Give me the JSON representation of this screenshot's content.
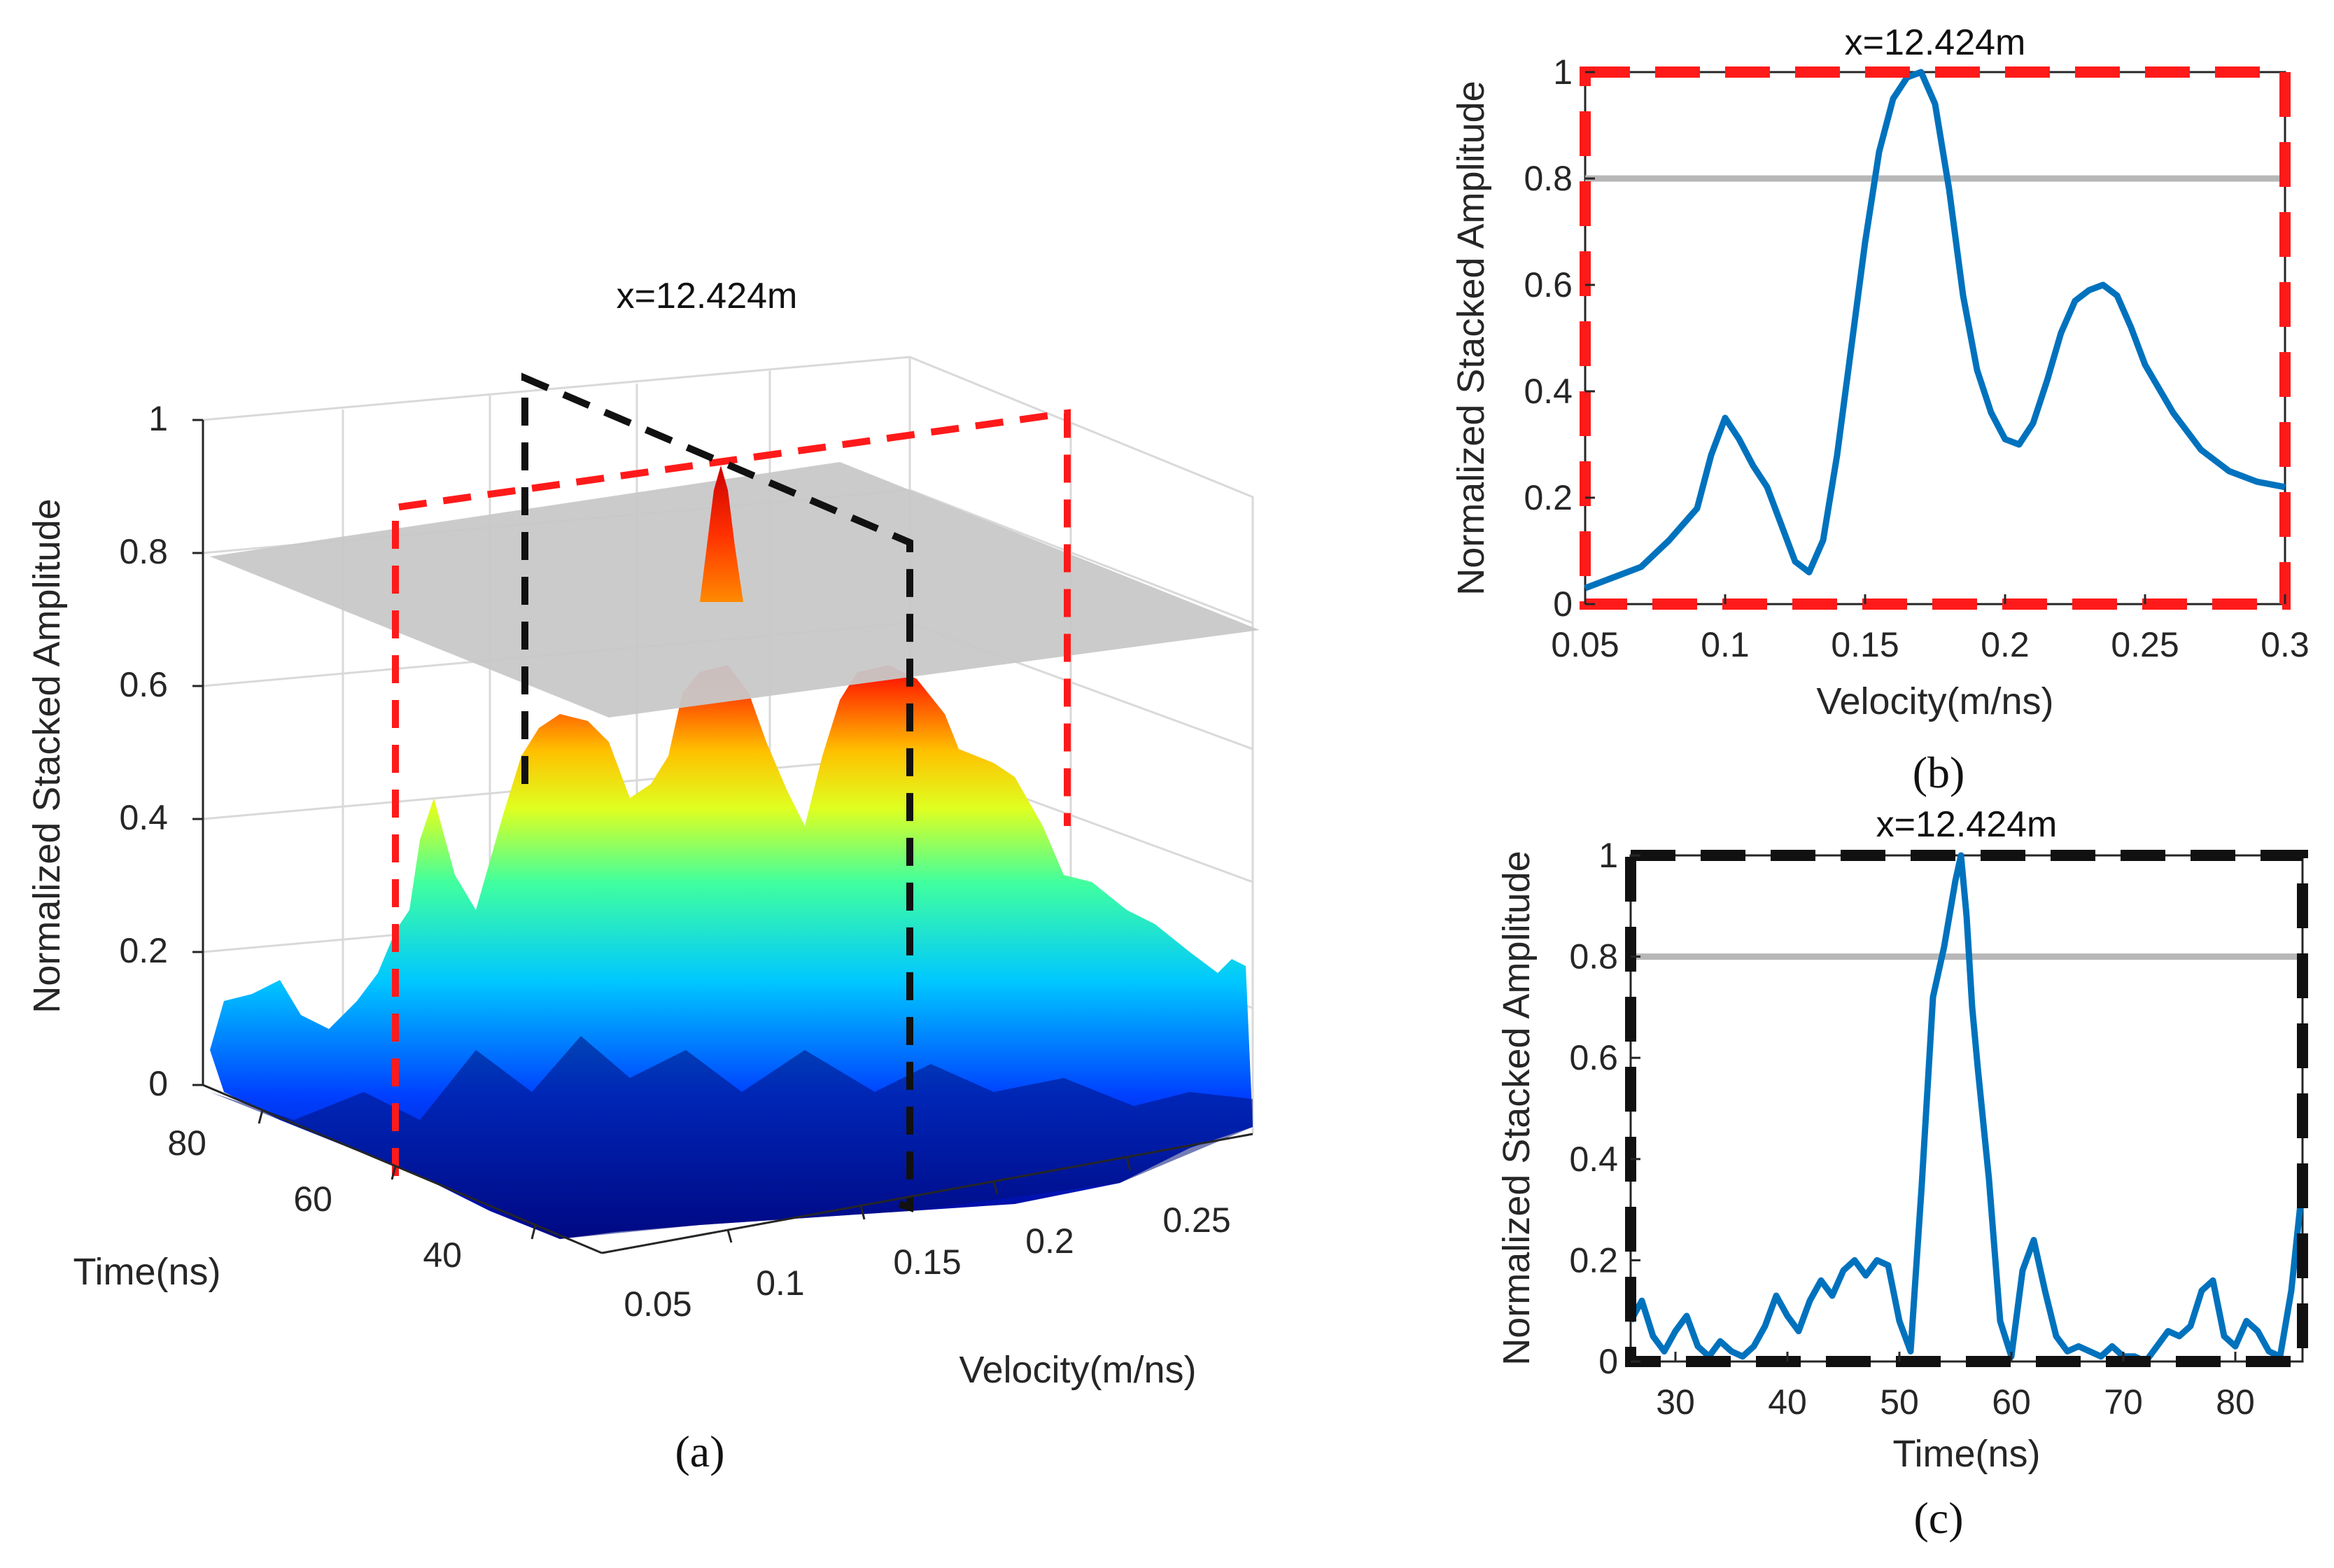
{
  "chart_data": [
    {
      "type": "surface3d",
      "panel_label": "(a)",
      "title": "x=12.424m",
      "zlabel": "Normalized Stacked Amplitude",
      "xlabel": "Velocity(m/ns)",
      "ylabel": "Time(ns)",
      "z_ticks": [
        "0",
        "0.2",
        "0.4",
        "0.6",
        "0.8",
        "1"
      ],
      "x_ticks": [
        "0.05",
        "0.1",
        "0.15",
        "0.2",
        "0.25"
      ],
      "y_ticks": [
        "80",
        "60",
        "40"
      ],
      "threshold": 0.8,
      "peak": {
        "velocity": 0.17,
        "time": 56,
        "amplitude": 1.0
      },
      "ridge_profile": [
        {
          "velocity": 0.05,
          "amplitude": 0.08
        },
        {
          "velocity": 0.08,
          "amplitude": 0.12
        },
        {
          "velocity": 0.1,
          "amplitude": 0.3
        },
        {
          "velocity": 0.13,
          "amplitude": 0.55
        },
        {
          "velocity": 0.15,
          "amplitude": 0.62
        },
        {
          "velocity": 0.17,
          "amplitude": 1.0
        },
        {
          "velocity": 0.19,
          "amplitude": 0.62
        },
        {
          "velocity": 0.21,
          "amplitude": 0.4
        },
        {
          "velocity": 0.23,
          "amplitude": 0.65
        },
        {
          "velocity": 0.25,
          "amplitude": 0.55
        },
        {
          "velocity": 0.28,
          "amplitude": 0.3
        }
      ]
    },
    {
      "type": "line",
      "panel_label": "(b)",
      "title": "x=12.424m",
      "xlabel": "Velocity(m/ns)",
      "ylabel": "Normalized Stacked Amplitude",
      "xlim": [
        0.05,
        0.3
      ],
      "ylim": [
        0,
        1
      ],
      "x_ticks": [
        "0.05",
        "0.1",
        "0.15",
        "0.2",
        "0.25",
        "0.3"
      ],
      "y_ticks": [
        "0",
        "0.2",
        "0.4",
        "0.6",
        "0.8",
        "1"
      ],
      "threshold": 0.8,
      "x": [
        0.05,
        0.06,
        0.07,
        0.08,
        0.09,
        0.095,
        0.1,
        0.105,
        0.11,
        0.115,
        0.12,
        0.125,
        0.13,
        0.135,
        0.14,
        0.145,
        0.15,
        0.155,
        0.16,
        0.165,
        0.17,
        0.175,
        0.18,
        0.185,
        0.19,
        0.195,
        0.2,
        0.205,
        0.21,
        0.215,
        0.22,
        0.225,
        0.23,
        0.235,
        0.24,
        0.245,
        0.25,
        0.26,
        0.27,
        0.28,
        0.29,
        0.3
      ],
      "y": [
        0.03,
        0.05,
        0.07,
        0.12,
        0.18,
        0.28,
        0.35,
        0.31,
        0.26,
        0.22,
        0.15,
        0.08,
        0.06,
        0.12,
        0.28,
        0.48,
        0.68,
        0.85,
        0.95,
        0.99,
        1.0,
        0.94,
        0.78,
        0.58,
        0.44,
        0.36,
        0.31,
        0.3,
        0.34,
        0.42,
        0.51,
        0.57,
        0.59,
        0.6,
        0.58,
        0.52,
        0.45,
        0.36,
        0.29,
        0.25,
        0.23,
        0.22
      ]
    },
    {
      "type": "line",
      "panel_label": "(c)",
      "title": "x=12.424m",
      "xlabel": "Time(ns)",
      "ylabel": "Normalized Stacked Amplitude",
      "xlim": [
        26,
        86
      ],
      "ylim": [
        0,
        1
      ],
      "x_ticks": [
        "30",
        "40",
        "50",
        "60",
        "70",
        "80"
      ],
      "y_ticks": [
        "0",
        "0.2",
        "0.4",
        "0.6",
        "0.8",
        "1"
      ],
      "threshold": 0.8,
      "x": [
        26,
        27,
        28,
        29,
        30,
        31,
        32,
        33,
        34,
        35,
        36,
        37,
        38,
        39,
        40,
        41,
        42,
        43,
        44,
        45,
        46,
        47,
        48,
        49,
        50,
        51,
        52,
        53,
        54,
        55,
        55.5,
        56,
        56.5,
        57,
        58,
        59,
        60,
        61,
        62,
        63,
        64,
        65,
        66,
        67,
        68,
        69,
        70,
        71,
        72,
        73,
        74,
        75,
        76,
        77,
        78,
        79,
        80,
        81,
        82,
        83,
        84,
        85,
        86
      ],
      "y": [
        0.08,
        0.12,
        0.05,
        0.02,
        0.06,
        0.09,
        0.03,
        0.01,
        0.04,
        0.02,
        0.01,
        0.03,
        0.07,
        0.13,
        0.09,
        0.06,
        0.12,
        0.16,
        0.13,
        0.18,
        0.2,
        0.17,
        0.2,
        0.19,
        0.08,
        0.02,
        0.35,
        0.72,
        0.82,
        0.95,
        1.0,
        0.88,
        0.7,
        0.58,
        0.36,
        0.08,
        0.01,
        0.18,
        0.24,
        0.14,
        0.05,
        0.02,
        0.03,
        0.02,
        0.01,
        0.03,
        0.01,
        0.01,
        0.0,
        0.03,
        0.06,
        0.05,
        0.07,
        0.14,
        0.16,
        0.05,
        0.03,
        0.08,
        0.06,
        0.02,
        0.01,
        0.14,
        0.35
      ]
    }
  ]
}
